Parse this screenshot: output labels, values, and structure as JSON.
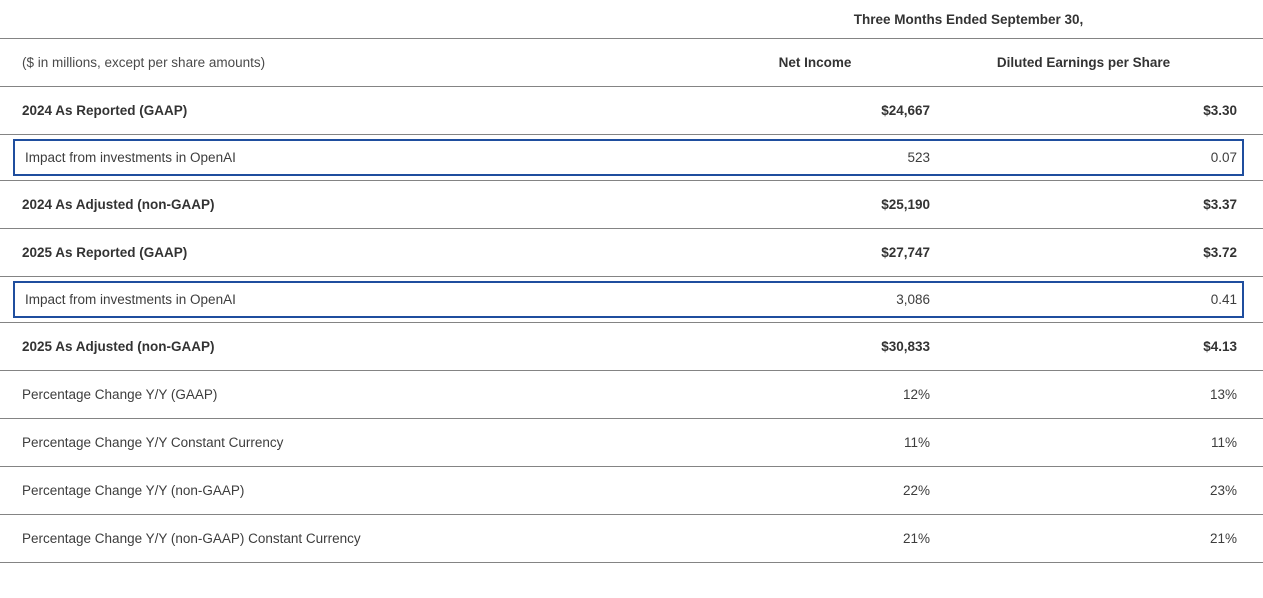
{
  "table": {
    "title": "Three Months Ended September 30,",
    "unit_note": "($ in millions, except per share amounts)",
    "columns": [
      "Net Income",
      "Diluted Earnings per Share"
    ],
    "rows": [
      {
        "label": "2024 As Reported (GAAP)",
        "net_income": "$24,667",
        "diluted_eps": "$3.30",
        "style": "bold"
      },
      {
        "label": "Impact from investments in OpenAI",
        "net_income": "523",
        "diluted_eps": "0.07",
        "style": "highlight"
      },
      {
        "label": "2024 As Adjusted (non-GAAP)",
        "net_income": "$25,190",
        "diluted_eps": "$3.37",
        "style": "bold"
      },
      {
        "label": "2025 As Reported (GAAP)",
        "net_income": "$27,747",
        "diluted_eps": "$3.72",
        "style": "bold"
      },
      {
        "label": "Impact from investments in OpenAI",
        "net_income": "3,086",
        "diluted_eps": "0.41",
        "style": "highlight"
      },
      {
        "label": "2025 As Adjusted (non-GAAP)",
        "net_income": "$30,833",
        "diluted_eps": "$4.13",
        "style": "bold"
      },
      {
        "label": "Percentage Change Y/Y (GAAP)",
        "net_income": "12%",
        "diluted_eps": "13%",
        "style": "normal"
      },
      {
        "label": "Percentage Change Y/Y Constant Currency",
        "net_income": "11%",
        "diluted_eps": "11%",
        "style": "normal"
      },
      {
        "label": "Percentage Change Y/Y (non-GAAP)",
        "net_income": "22%",
        "diluted_eps": "23%",
        "style": "normal"
      },
      {
        "label": "Percentage Change Y/Y (non-GAAP) Constant Currency",
        "net_income": "21%",
        "diluted_eps": "21%",
        "style": "normal"
      }
    ]
  },
  "colors": {
    "highlight_border": "#1f4e9e",
    "divider": "#848484",
    "text": "#3d3d3d"
  }
}
